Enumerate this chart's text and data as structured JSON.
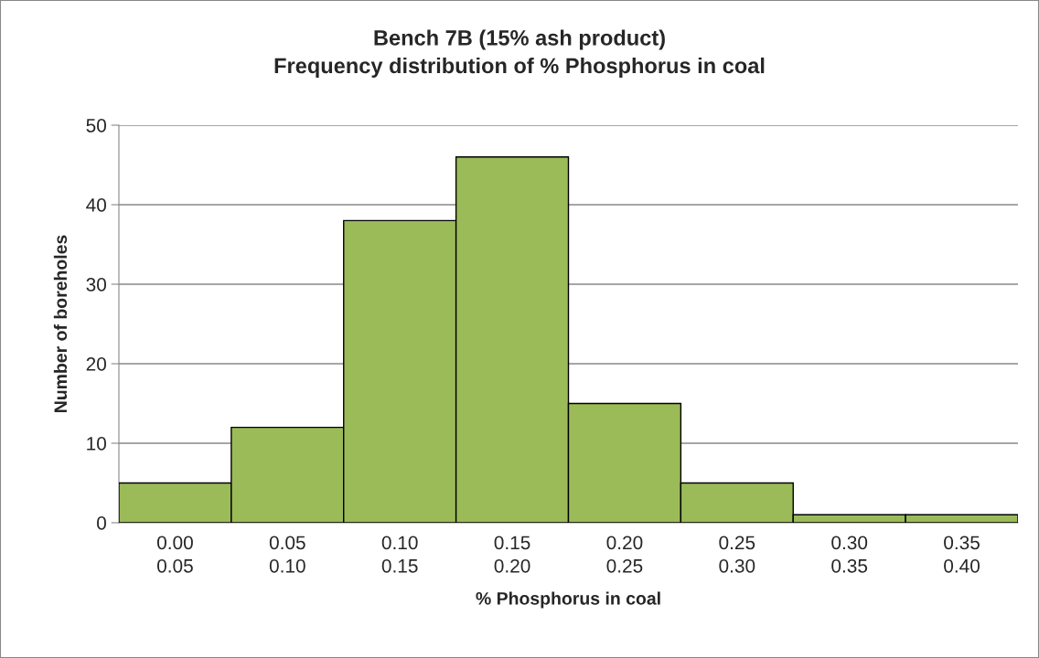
{
  "chart_data": {
    "type": "bar",
    "title": "Bench 7B (15% ash product)\nFrequency distribution of % Phosphorus in coal",
    "xlabel": "% Phosphorus in coal",
    "ylabel": "Number of boreholes",
    "categories": [
      "0.00\n0.05",
      "0.05\n0.10",
      "0.10\n0.15",
      "0.15\n0.20",
      "0.20\n0.25",
      "0.25\n0.30",
      "0.30\n0.35",
      "0.35\n0.40"
    ],
    "values": [
      5,
      12,
      38,
      46,
      15,
      5,
      1,
      1
    ],
    "color": "#9bbb59",
    "ylim": [
      0,
      50
    ],
    "yticks": [
      0,
      10,
      20,
      30,
      40,
      50
    ],
    "grid": "y",
    "legend": false
  }
}
